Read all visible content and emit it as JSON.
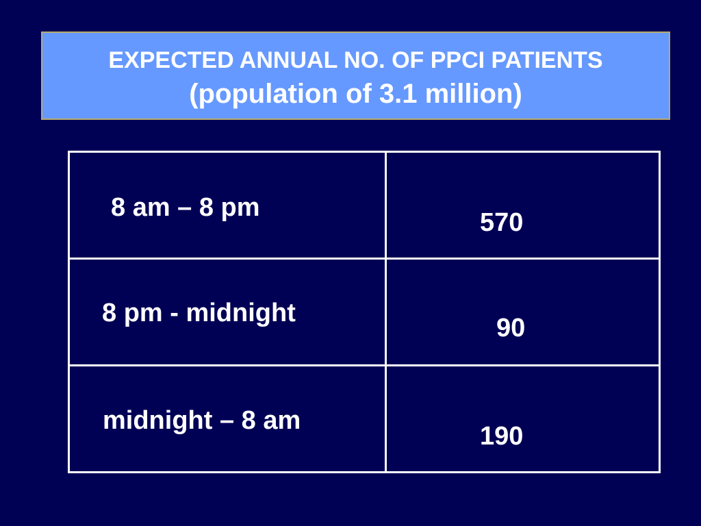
{
  "title": {
    "line1": "EXPECTED ANNUAL NO. OF PPCI PATIENTS",
    "line2": "(population of 3.1 million)"
  },
  "table": {
    "rows": [
      {
        "period": "8 am – 8 pm",
        "patients": "570"
      },
      {
        "period": "8 pm - midnight",
        "patients": "90"
      },
      {
        "period": "midnight – 8 am",
        "patients": "190"
      }
    ]
  },
  "colors": {
    "background": "#000055",
    "title_box": "#6699ff",
    "text": "#ffffff"
  }
}
